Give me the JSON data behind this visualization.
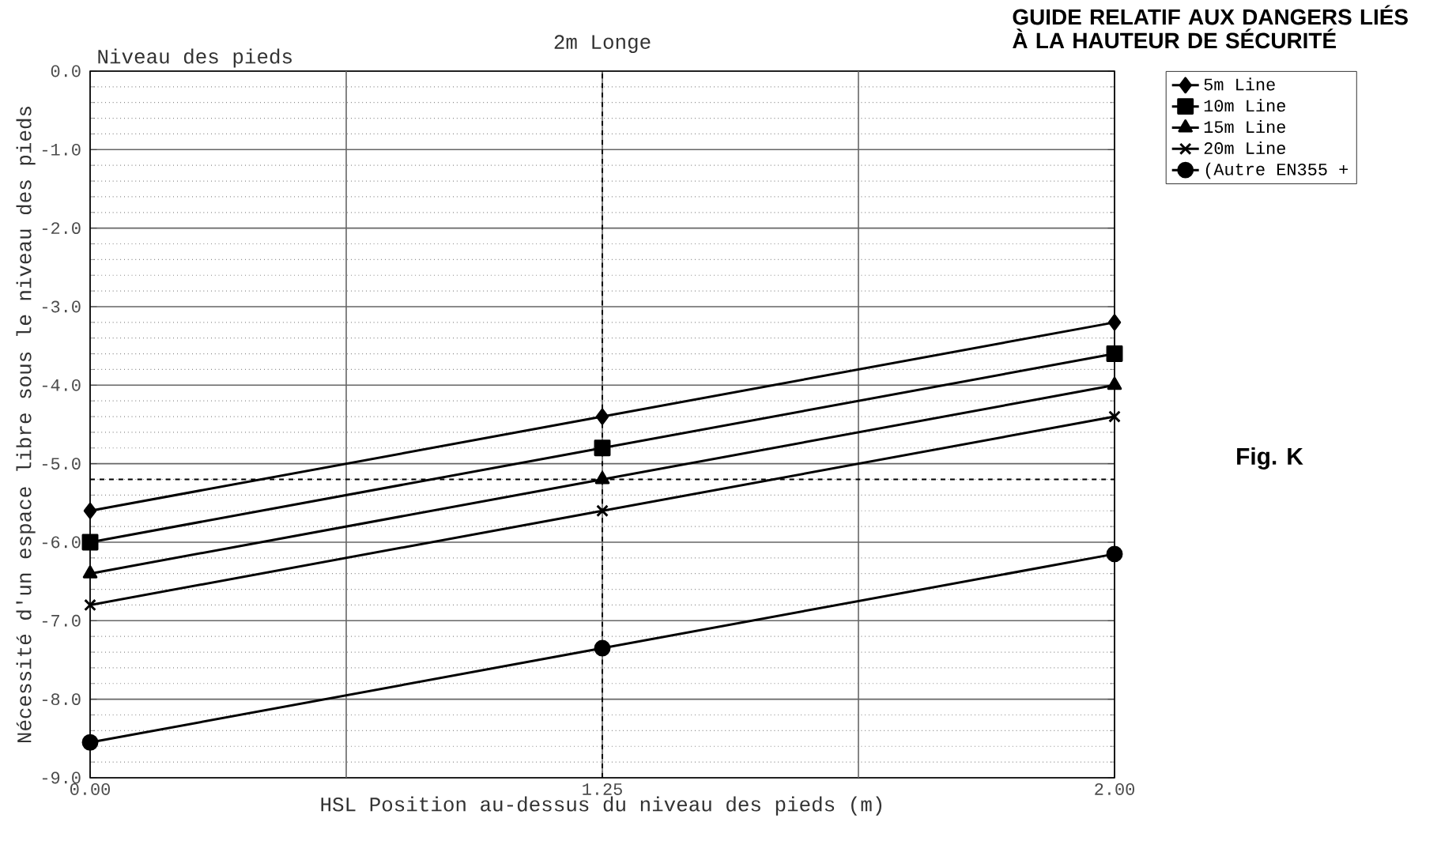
{
  "chart_data": {
    "type": "line",
    "title": "2m Longe",
    "xlabel": "HSL Position au-dessus du niveau des pieds (m)",
    "ylabel": "Nécessité d'un espace libre sous le niveau des pieds",
    "categories": [
      "0.00",
      "1.25",
      "2.00"
    ],
    "series": [
      {
        "name": "5m Line",
        "color": "#000000",
        "marker": "diamond",
        "values": [
          -5.6,
          -4.4,
          -3.2
        ]
      },
      {
        "name": "10m Line",
        "color": "#000000",
        "marker": "square",
        "values": [
          -6.0,
          -4.8,
          -3.6
        ]
      },
      {
        "name": "15m Line",
        "color": "#000000",
        "marker": "triangle",
        "values": [
          -6.4,
          -5.2,
          -4.0
        ]
      },
      {
        "name": "20m Line",
        "color": "#000000",
        "marker": "cross",
        "values": [
          -6.8,
          -5.6,
          -4.4
        ]
      },
      {
        "name": "(Autre EN355 +",
        "color": "#000000",
        "marker": "circle",
        "values": [
          -8.55,
          -7.35,
          -6.15
        ]
      }
    ],
    "ylim": [
      -9,
      0
    ],
    "yticks": [
      {
        "value": 0,
        "label": "0.0"
      },
      {
        "value": -1,
        "label": "-1.0"
      },
      {
        "value": -2,
        "label": "-2.0"
      },
      {
        "value": -3,
        "label": "-3.0"
      },
      {
        "value": -4,
        "label": "-4.0"
      },
      {
        "value": -5,
        "label": "-5.0"
      },
      {
        "value": -6,
        "label": "-6.0"
      },
      {
        "value": -7,
        "label": "-7.0"
      },
      {
        "value": -8,
        "label": "-8.0"
      },
      {
        "value": -9,
        "label": "-9.0"
      }
    ],
    "ref_lines": [
      {
        "axis": "y",
        "value": -5.2,
        "line_style": "dashed",
        "color": "#000000"
      },
      {
        "axis": "x",
        "value": "1.25",
        "line_style": "dashed",
        "color": "#000000"
      }
    ],
    "annotations": [
      "Niveau des pieds",
      "GUIDE RELATIF AUX DANGERS LIÉS À LA HAUTEUR DE SÉCURITÉ",
      "Fig. K"
    ],
    "grid": true,
    "legend": "top right",
    "line_style": "solid"
  }
}
